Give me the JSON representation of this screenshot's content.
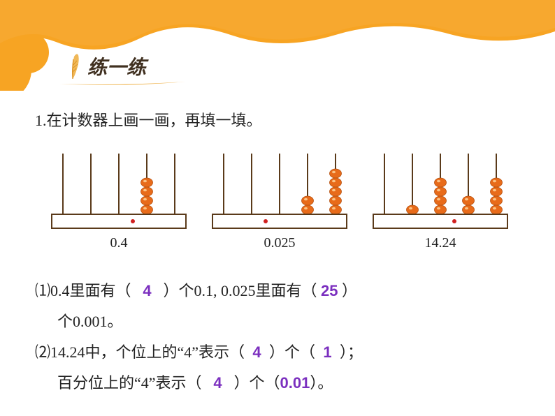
{
  "banner": {
    "bg_color": "#ffffff",
    "wave_color": "#f7a423",
    "wave_edge_darker": "#e6951c"
  },
  "title": {
    "text": "练一练",
    "color": "#403020",
    "feather_colors": {
      "shaft": "#d98c1a",
      "vane": "#f0b858"
    },
    "swoosh_color": "#f0b858"
  },
  "prompt": "1.在计数器上画一画，再填一填。",
  "abacuses": [
    {
      "label": "0.4",
      "rods": 5,
      "decimal_after": 2,
      "beads": [
        0,
        0,
        0,
        4,
        0
      ],
      "bead_fill": "#e86b1a",
      "bead_hl": "#ffd9a0",
      "rod_color": "#5a3a1a",
      "frame_color": "#5a3a1a",
      "dot_color": "#d02020"
    },
    {
      "label": "0.025",
      "rods": 5,
      "decimal_after": 1,
      "beads": [
        0,
        0,
        0,
        2,
        5
      ],
      "bead_fill": "#e86b1a",
      "bead_hl": "#ffd9a0",
      "rod_color": "#5a3a1a",
      "frame_color": "#5a3a1a",
      "dot_color": "#d02020"
    },
    {
      "label": "14.24",
      "rods": 5,
      "decimal_after": 2,
      "beads": [
        0,
        1,
        4,
        2,
        4
      ],
      "bead_fill": "#e86b1a",
      "bead_hl": "#ffd9a0",
      "rod_color": "#5a3a1a",
      "frame_color": "#5a3a1a",
      "dot_color": "#d02020"
    }
  ],
  "questions": {
    "q1_pre": "⑴0.4里面有（",
    "q1_ans1": "4",
    "q1_mid": "）个0.1, 0.025里面有（",
    "q1_ans2": "25",
    "q1_post": "）",
    "q1_line2": "个0.001。",
    "q2_pre": "⑵14.24中，个位上的“4”表示（",
    "q2_ans1": "4",
    "q2_mid1": "）个（",
    "q2_ans2": "1",
    "q2_post1": "）；",
    "q2_line2_pre": "百分位上的“4”表示（",
    "q2_ans3": "4",
    "q2_line2_mid": "）个（",
    "q2_ans4": "0.01",
    "q2_line2_post": "）。"
  },
  "colors": {
    "text": "#222222",
    "answer": "#7b2fbf"
  },
  "fontsize": {
    "body": 22,
    "title": 28,
    "abacus_label": 20
  }
}
